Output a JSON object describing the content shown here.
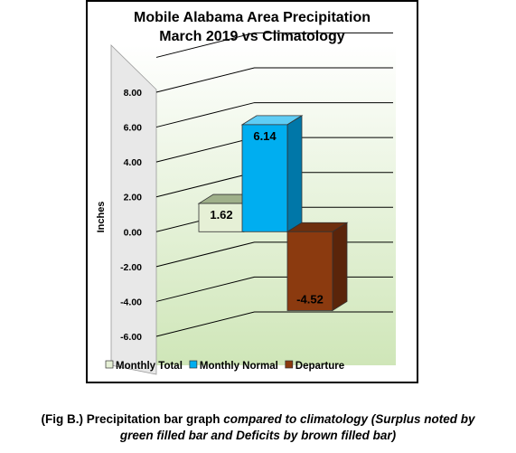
{
  "chart_data": {
    "type": "bar",
    "title_line1": "Mobile Alabama Area Precipitation",
    "title_line2": "March 2019 vs Climatology",
    "ylabel": "Inches",
    "xlabel": "",
    "ylim": [
      -6,
      8
    ],
    "yticks": [
      "8.00",
      "6.00",
      "4.00",
      "2.00",
      "0.00",
      "-2.00",
      "-4.00",
      "-6.00"
    ],
    "gridlines": true,
    "legend_position": "bottom",
    "series": [
      {
        "name": "Monthly Total",
        "value": 1.62,
        "label": "1.62",
        "color": "#e6f0d6"
      },
      {
        "name": "Monthly Normal",
        "value": 6.14,
        "label": "6.14",
        "color": "#00aef0"
      },
      {
        "name": "Departure",
        "value": -4.52,
        "label": "-4.52",
        "color": "#8b3a0f"
      }
    ]
  },
  "caption": {
    "line1_plain": "(Fig B.) Precipitation bar graph ",
    "line1_italic": "compared to climatology (Surplus noted by",
    "line2_italic": "green filled bar and Deficits by brown filled bar)"
  }
}
